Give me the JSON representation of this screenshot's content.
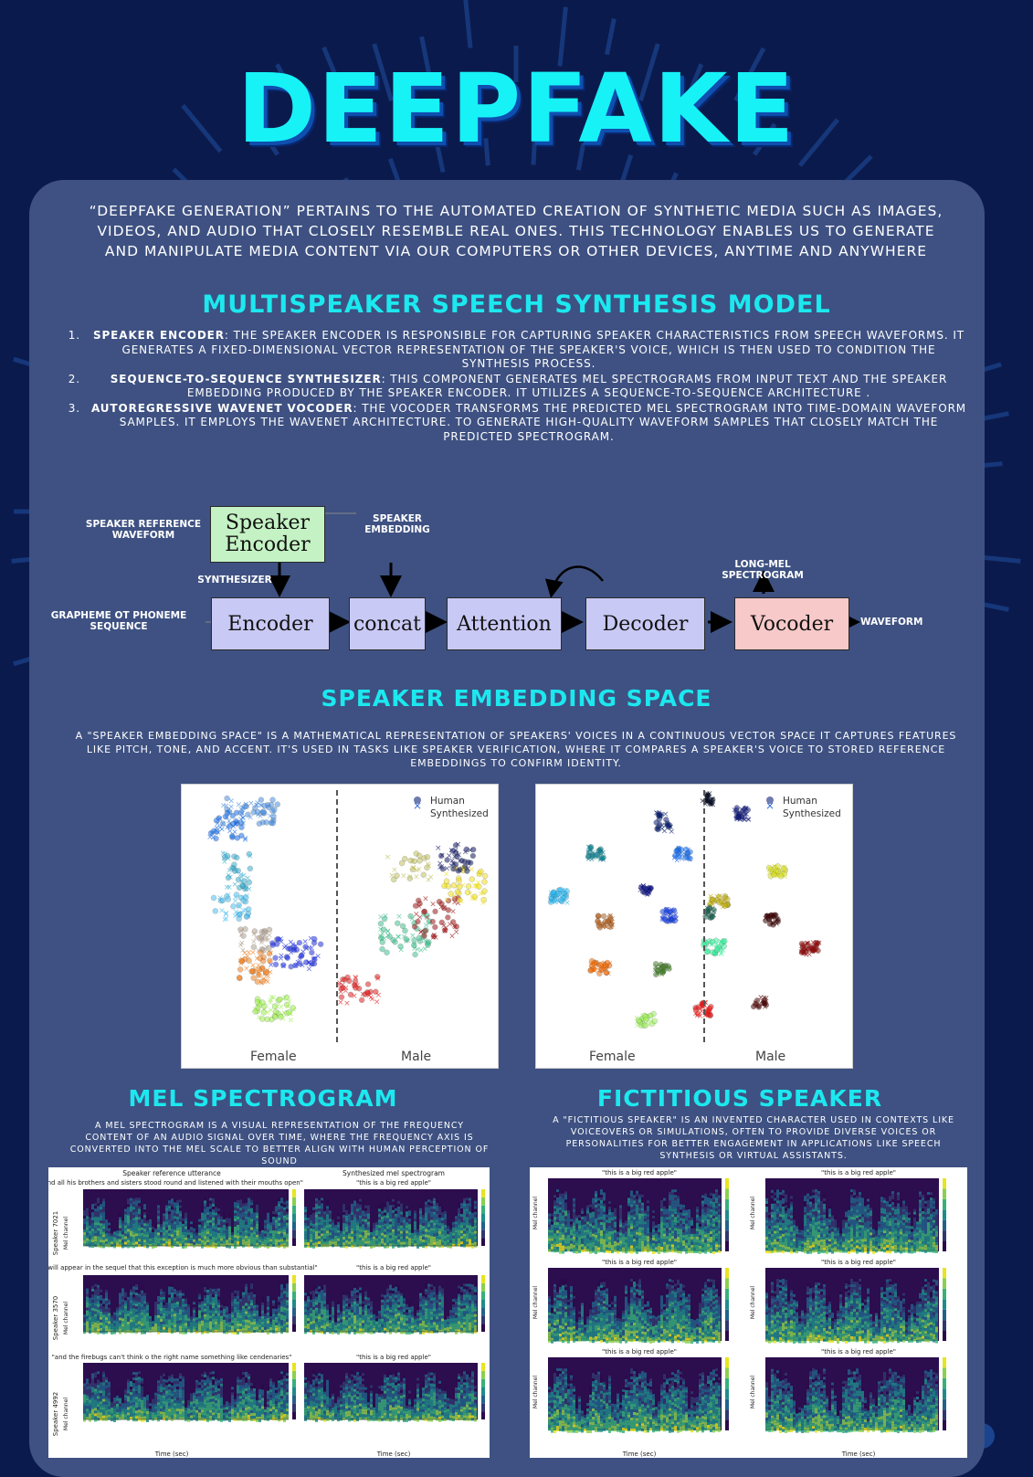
{
  "title": "DEEPFAKE",
  "intro": "“DEEPFAKE GENERATION” PERTAINS TO THE AUTOMATED CREATION OF SYNTHETIC MEDIA SUCH AS IMAGES, VIDEOS, AND AUDIO THAT CLOSELY RESEMBLE REAL ONES. THIS TECHNOLOGY ENABLES US TO GENERATE AND MANIPULATE MEDIA CONTENT VIA OUR COMPUTERS OR OTHER DEVICES, ANYTIME AND ANYWHERE",
  "section1": {
    "heading": "MULTISPEAKER SPEECH SYNTHESIS MODEL",
    "items": [
      {
        "num": "1.",
        "term": "SPEAKER ENCODER",
        "text": ": THE SPEAKER ENCODER IS RESPONSIBLE FOR CAPTURING SPEAKER CHARACTERISTICS FROM SPEECH WAVEFORMS. IT GENERATES A FIXED-DIMENSIONAL VECTOR REPRESENTATION OF THE SPEAKER'S VOICE, WHICH IS THEN USED TO CONDITION THE SYNTHESIS PROCESS."
      },
      {
        "num": "2.",
        "term": "SEQUENCE-TO-SEQUENCE SYNTHESIZER",
        "text": ": THIS COMPONENT GENERATES MEL SPECTROGRAMS FROM INPUT TEXT AND THE SPEAKER EMBEDDING PRODUCED BY THE SPEAKER ENCODER. IT UTILIZES A SEQUENCE-TO-SEQUENCE ARCHITECTURE ."
      },
      {
        "num": "3.",
        "term": "AUTOREGRESSIVE WAVENET VOCODER",
        "text": ": THE VOCODER TRANSFORMS THE PREDICTED MEL SPECTROGRAM INTO TIME-DOMAIN WAVEFORM SAMPLES. IT EMPLOYS THE WAVENET ARCHITECTURE. TO GENERATE HIGH-QUALITY WAVEFORM SAMPLES THAT CLOSELY MATCH THE PREDICTED SPECTROGRAM."
      }
    ]
  },
  "diagram": {
    "speaker_encoder_line1": "Speaker",
    "speaker_encoder_line2": "Encoder",
    "encoder": "Encoder",
    "concat": "concat",
    "attention": "Attention",
    "decoder": "Decoder",
    "vocoder": "Vocoder",
    "label_ref_waveform_1": "SPEAKER REFERENCE",
    "label_ref_waveform_2": "WAVEFORM",
    "label_embedding_1": "SPEAKER",
    "label_embedding_2": "EMBEDDING",
    "label_synthesizer": "SYNTHESIZER",
    "label_grapheme_1": "GRAPHEME OT PHONEME",
    "label_grapheme_2": "SEQUENCE",
    "label_longmel_1": "LONG-MEL",
    "label_longmel_2": "SPECTROGRAM",
    "label_waveform": "WAVEFORM",
    "colors": {
      "speaker_encoder": "#c4f2c4",
      "blocks": "#c9c9f5",
      "vocoder": "#f7c9c9"
    }
  },
  "section2": {
    "heading": "SPEAKER EMBEDDING SPACE",
    "text": "A \"SPEAKER EMBEDDING SPACE\" IS A MATHEMATICAL REPRESENTATION OF SPEAKERS' VOICES IN A CONTINUOUS VECTOR SPACE IT CAPTURES FEATURES LIKE PITCH, TONE, AND ACCENT. IT'S USED IN TASKS LIKE SPEAKER VERIFICATION, WHERE IT COMPARES A SPEAKER'S VOICE TO STORED REFERENCE EMBEDDINGS TO CONFIRM IDENTITY.",
    "plot_left": {
      "legend_human": "Human",
      "legend_synth": "Synthesized",
      "label_female": "Female",
      "label_male": "Male"
    },
    "plot_right": {
      "legend_human": "Human",
      "legend_synth": "Synthesized",
      "label_female": "Female",
      "label_male": "Male"
    }
  },
  "section3": {
    "heading": "MEL SPECTROGRAM",
    "text": "A MEL SPECTROGRAM IS A VISUAL REPRESENTATION OF THE FREQUENCY CONTENT OF AN AUDIO SIGNAL OVER TIME, WHERE THE FREQUENCY AXIS IS CONVERTED INTO THE MEL SCALE TO BETTER ALIGN WITH HUMAN PERCEPTION OF SOUND",
    "col1_title": "Speaker reference utterance",
    "col2_title": "Synthesized mel spectrogram",
    "rows": [
      {
        "speaker": "Speaker 7021",
        "ref_caption": "\"and all his brothers and sisters stood round and listened with their mouths open\"",
        "syn_caption": "\"this is a big red apple\""
      },
      {
        "speaker": "Speaker 3570",
        "ref_caption": "\"but it will appear in the sequel that this exception is much more obvious than substantial\"",
        "syn_caption": "\"this is a big red apple\""
      },
      {
        "speaker": "Speaker 4992",
        "ref_caption": "\"and the firebugs can't think o the right name something like cendenaries\"",
        "syn_caption": "\"this is a big red apple\""
      }
    ],
    "ylabel": "Mel channel",
    "xlabel": "Time (sec)"
  },
  "section4": {
    "heading": "FICTITIOUS SPEAKER",
    "text": "A \"FICTITIOUS SPEAKER\" IS AN INVENTED CHARACTER USED IN CONTEXTS LIKE VOICEOVERS OR SIMULATIONS, OFTEN TO PROVIDE DIVERSE VOICES OR PERSONALITIES FOR BETTER ENGAGEMENT IN APPLICATIONS LIKE SPEECH SYNTHESIS OR VIRTUAL ASSISTANTS.",
    "caption": "\"this is a big red apple\"",
    "ylabel": "Mel channel",
    "xlabel": "Time (sec)"
  }
}
